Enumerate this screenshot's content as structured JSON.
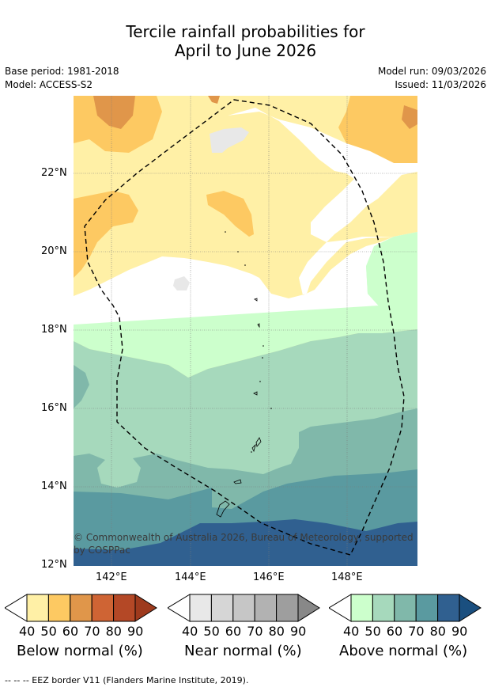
{
  "title": {
    "line1": "Tercile rainfall probabilities for",
    "line2": "April to June 2026"
  },
  "meta": {
    "base_period": "Base period: 1981-2018",
    "model": "Model: ACCESS-S2",
    "model_run": "Model run: 09/03/2026",
    "issued": "Issued: 11/03/2026"
  },
  "map": {
    "lat_labels": [
      "22°N",
      "20°N",
      "18°N",
      "16°N",
      "14°N",
      "12°N"
    ],
    "lon_labels": [
      "142°E",
      "144°E",
      "146°E",
      "148°E"
    ],
    "copyright": "© Commonwealth of Australia 2026, Bureau of Meteorology, supported by COSPPac"
  },
  "legend": {
    "ticks": [
      "40",
      "50",
      "60",
      "70",
      "80",
      "90"
    ],
    "below": {
      "label": "Below normal (%)",
      "colors": [
        "#fff0a6",
        "#fdc962",
        "#e0964a",
        "#cf6434",
        "#b44826",
        "#9e3a1d"
      ]
    },
    "near": {
      "label": "Near normal (%)",
      "colors": [
        "#e8e8e8",
        "#d6d6d6",
        "#c6c6c6",
        "#b2b2b2",
        "#9e9e9e",
        "#888888"
      ]
    },
    "above": {
      "label": "Above normal (%)",
      "colors": [
        "#ccffcc",
        "#a6d9bc",
        "#80b8aa",
        "#5a9aa0",
        "#306090",
        "#1a4f7f"
      ]
    }
  },
  "footer": "--  --  -- EEZ border V11 (Flanders Marine Institute, 2019)."
}
